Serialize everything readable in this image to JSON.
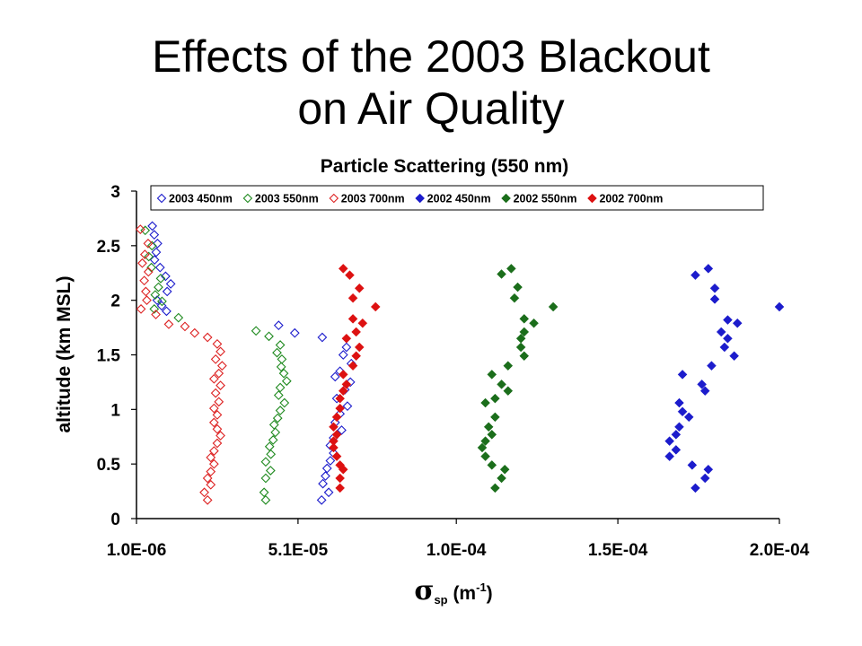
{
  "slide": {
    "title_line1": "Effects of the 2003 Blackout",
    "title_line2": "on Air Quality"
  },
  "chart_data": {
    "type": "scatter",
    "title": "Particle Scattering (550 nm)",
    "xlabel_symbol": "σ",
    "xlabel_sub": "sp",
    "xlabel_unit_open": " (m",
    "xlabel_unit_sup": "-1",
    "xlabel_unit_close": ")",
    "ylabel": "altitude (km MSL)",
    "xlim": [
      1e-06,
      0.0002
    ],
    "ylim": [
      0,
      3
    ],
    "x_ticks": [
      {
        "value": 1e-06,
        "label": "1.0E-06"
      },
      {
        "value": 5.1e-05,
        "label": "5.1E-05"
      },
      {
        "value": 0.0001,
        "label": "1.0E-04"
      },
      {
        "value": 0.00015,
        "label": "1.5E-04"
      },
      {
        "value": 0.0002,
        "label": "2.0E-04"
      }
    ],
    "y_ticks": [
      {
        "value": 0,
        "label": "0"
      },
      {
        "value": 0.5,
        "label": "0.5"
      },
      {
        "value": 1,
        "label": "1"
      },
      {
        "value": 1.5,
        "label": "1.5"
      },
      {
        "value": 2,
        "label": "2"
      },
      {
        "value": 2.5,
        "label": "2.5"
      },
      {
        "value": 3,
        "label": "3"
      }
    ],
    "grid": false,
    "legend_position": "top",
    "series": [
      {
        "name": "2003 450nm",
        "color": "#1c1ccc",
        "marker": "diamond-open",
        "points": [
          {
            "x": 5.9e-06,
            "y": 2.68
          },
          {
            "x": 6.5e-06,
            "y": 2.6
          },
          {
            "x": 7.5e-06,
            "y": 2.52
          },
          {
            "x": 7.1e-06,
            "y": 2.44
          },
          {
            "x": 6.6e-06,
            "y": 2.37
          },
          {
            "x": 8.3e-06,
            "y": 2.3
          },
          {
            "x": 1e-05,
            "y": 2.22
          },
          {
            "x": 1.16e-05,
            "y": 2.15
          },
          {
            "x": 1.05e-05,
            "y": 2.08
          },
          {
            "x": 7.4e-06,
            "y": 2.0
          },
          {
            "x": 8.8e-06,
            "y": 1.95
          },
          {
            "x": 1.03e-05,
            "y": 1.9
          },
          {
            "x": 4.5e-05,
            "y": 1.77
          },
          {
            "x": 5e-05,
            "y": 1.7
          },
          {
            "x": 5.85e-05,
            "y": 1.66
          },
          {
            "x": 6.6e-05,
            "y": 1.57
          },
          {
            "x": 6.5e-05,
            "y": 1.5
          },
          {
            "x": 6.75e-05,
            "y": 1.42
          },
          {
            "x": 6.4e-05,
            "y": 1.35
          },
          {
            "x": 6.25e-05,
            "y": 1.3
          },
          {
            "x": 6.72e-05,
            "y": 1.25
          },
          {
            "x": 6.55e-05,
            "y": 1.18
          },
          {
            "x": 6.3e-05,
            "y": 1.1
          },
          {
            "x": 6.63e-05,
            "y": 1.03
          },
          {
            "x": 6.4e-05,
            "y": 0.96
          },
          {
            "x": 6.25e-05,
            "y": 0.88
          },
          {
            "x": 6.45e-05,
            "y": 0.81
          },
          {
            "x": 6.2e-05,
            "y": 0.74
          },
          {
            "x": 6.1e-05,
            "y": 0.67
          },
          {
            "x": 6.2e-05,
            "y": 0.6
          },
          {
            "x": 6.1e-05,
            "y": 0.53
          },
          {
            "x": 6e-05,
            "y": 0.46
          },
          {
            "x": 5.95e-05,
            "y": 0.39
          },
          {
            "x": 5.87e-05,
            "y": 0.32
          },
          {
            "x": 6.05e-05,
            "y": 0.24
          },
          {
            "x": 5.83e-05,
            "y": 0.17
          }
        ]
      },
      {
        "name": "2003 550nm",
        "color": "#1f8a1f",
        "marker": "diamond-open",
        "points": [
          {
            "x": 3.7e-06,
            "y": 2.64
          },
          {
            "x": 5.8e-06,
            "y": 2.5
          },
          {
            "x": 4.8e-06,
            "y": 2.4
          },
          {
            "x": 5.6e-06,
            "y": 2.3
          },
          {
            "x": 8.5e-06,
            "y": 2.2
          },
          {
            "x": 7.8e-06,
            "y": 2.12
          },
          {
            "x": 6.8e-06,
            "y": 2.05
          },
          {
            "x": 8.9e-06,
            "y": 1.99
          },
          {
            "x": 6.5e-06,
            "y": 1.92
          },
          {
            "x": 1.4e-05,
            "y": 1.84
          },
          {
            "x": 3.8e-05,
            "y": 1.72
          },
          {
            "x": 4.2e-05,
            "y": 1.67
          },
          {
            "x": 4.55e-05,
            "y": 1.59
          },
          {
            "x": 4.45e-05,
            "y": 1.52
          },
          {
            "x": 4.6e-05,
            "y": 1.46
          },
          {
            "x": 4.58e-05,
            "y": 1.39
          },
          {
            "x": 4.66e-05,
            "y": 1.33
          },
          {
            "x": 4.75e-05,
            "y": 1.26
          },
          {
            "x": 4.55e-05,
            "y": 1.2
          },
          {
            "x": 4.5e-05,
            "y": 1.13
          },
          {
            "x": 4.68e-05,
            "y": 1.06
          },
          {
            "x": 4.55e-05,
            "y": 0.99
          },
          {
            "x": 4.47e-05,
            "y": 0.92
          },
          {
            "x": 4.36e-05,
            "y": 0.86
          },
          {
            "x": 4.4e-05,
            "y": 0.79
          },
          {
            "x": 4.33e-05,
            "y": 0.72
          },
          {
            "x": 4.22e-05,
            "y": 0.66
          },
          {
            "x": 4.26e-05,
            "y": 0.59
          },
          {
            "x": 4.1e-05,
            "y": 0.52
          },
          {
            "x": 4.25e-05,
            "y": 0.44
          },
          {
            "x": 4.1e-05,
            "y": 0.37
          },
          {
            "x": 4.05e-05,
            "y": 0.24
          },
          {
            "x": 4.1e-05,
            "y": 0.17
          }
        ]
      },
      {
        "name": "2003 700nm",
        "color": "#dd2222",
        "marker": "diamond-open",
        "points": [
          {
            "x": 2.2e-06,
            "y": 2.65
          },
          {
            "x": 4.6e-06,
            "y": 2.52
          },
          {
            "x": 3.6e-06,
            "y": 2.42
          },
          {
            "x": 2.8e-06,
            "y": 2.34
          },
          {
            "x": 4.7e-06,
            "y": 2.26
          },
          {
            "x": 3.4e-06,
            "y": 2.18
          },
          {
            "x": 3.9e-06,
            "y": 2.08
          },
          {
            "x": 4.2e-06,
            "y": 2.0
          },
          {
            "x": 2.4e-06,
            "y": 1.92
          },
          {
            "x": 7e-06,
            "y": 1.87
          },
          {
            "x": 1.1e-05,
            "y": 1.78
          },
          {
            "x": 1.6e-05,
            "y": 1.76
          },
          {
            "x": 1.9e-05,
            "y": 1.7
          },
          {
            "x": 2.3e-05,
            "y": 1.66
          },
          {
            "x": 2.6e-05,
            "y": 1.6
          },
          {
            "x": 2.7e-05,
            "y": 1.53
          },
          {
            "x": 2.55e-05,
            "y": 1.46
          },
          {
            "x": 2.75e-05,
            "y": 1.4
          },
          {
            "x": 2.65e-05,
            "y": 1.33
          },
          {
            "x": 2.5e-05,
            "y": 1.28
          },
          {
            "x": 2.7e-05,
            "y": 1.22
          },
          {
            "x": 2.55e-05,
            "y": 1.15
          },
          {
            "x": 2.65e-05,
            "y": 1.07
          },
          {
            "x": 2.5e-05,
            "y": 1.01
          },
          {
            "x": 2.6e-05,
            "y": 0.95
          },
          {
            "x": 2.5e-05,
            "y": 0.88
          },
          {
            "x": 2.6e-05,
            "y": 0.82
          },
          {
            "x": 2.7e-05,
            "y": 0.76
          },
          {
            "x": 2.6e-05,
            "y": 0.69
          },
          {
            "x": 2.5e-05,
            "y": 0.62
          },
          {
            "x": 2.4e-05,
            "y": 0.56
          },
          {
            "x": 2.5e-05,
            "y": 0.5
          },
          {
            "x": 2.4e-05,
            "y": 0.43
          },
          {
            "x": 2.3e-05,
            "y": 0.37
          },
          {
            "x": 2.4e-05,
            "y": 0.31
          },
          {
            "x": 2.2e-05,
            "y": 0.24
          },
          {
            "x": 2.3e-05,
            "y": 0.17
          }
        ]
      },
      {
        "name": "2002 450nm",
        "color": "#1c1ccc",
        "marker": "diamond-filled",
        "points": [
          {
            "x": 0.000174,
            "y": 2.23
          },
          {
            "x": 0.000178,
            "y": 2.29
          },
          {
            "x": 0.00018,
            "y": 2.11
          },
          {
            "x": 0.00018,
            "y": 2.01
          },
          {
            "x": 0.0002,
            "y": 1.94
          },
          {
            "x": 0.000184,
            "y": 1.82
          },
          {
            "x": 0.000187,
            "y": 1.79
          },
          {
            "x": 0.000182,
            "y": 1.71
          },
          {
            "x": 0.000184,
            "y": 1.65
          },
          {
            "x": 0.000183,
            "y": 1.57
          },
          {
            "x": 0.000186,
            "y": 1.49
          },
          {
            "x": 0.000179,
            "y": 1.4
          },
          {
            "x": 0.00017,
            "y": 1.32
          },
          {
            "x": 0.000176,
            "y": 1.23
          },
          {
            "x": 0.000177,
            "y": 1.17
          },
          {
            "x": 0.000169,
            "y": 1.06
          },
          {
            "x": 0.00017,
            "y": 0.98
          },
          {
            "x": 0.000172,
            "y": 0.93
          },
          {
            "x": 0.000169,
            "y": 0.84
          },
          {
            "x": 0.000168,
            "y": 0.77
          },
          {
            "x": 0.000166,
            "y": 0.71
          },
          {
            "x": 0.000168,
            "y": 0.63
          },
          {
            "x": 0.000166,
            "y": 0.57
          },
          {
            "x": 0.000173,
            "y": 0.49
          },
          {
            "x": 0.000178,
            "y": 0.45
          },
          {
            "x": 0.000177,
            "y": 0.37
          },
          {
            "x": 0.000174,
            "y": 0.28
          }
        ]
      },
      {
        "name": "2002 550nm",
        "color": "#1b6e1b",
        "marker": "diamond-filled",
        "points": [
          {
            "x": 0.000114,
            "y": 2.24
          },
          {
            "x": 0.000117,
            "y": 2.29
          },
          {
            "x": 0.000119,
            "y": 2.12
          },
          {
            "x": 0.000118,
            "y": 2.02
          },
          {
            "x": 0.00013,
            "y": 1.94
          },
          {
            "x": 0.000121,
            "y": 1.83
          },
          {
            "x": 0.000124,
            "y": 1.79
          },
          {
            "x": 0.000121,
            "y": 1.71
          },
          {
            "x": 0.00012,
            "y": 1.65
          },
          {
            "x": 0.00012,
            "y": 1.57
          },
          {
            "x": 0.000121,
            "y": 1.49
          },
          {
            "x": 0.000116,
            "y": 1.4
          },
          {
            "x": 0.000111,
            "y": 1.32
          },
          {
            "x": 0.000114,
            "y": 1.23
          },
          {
            "x": 0.000116,
            "y": 1.17
          },
          {
            "x": 0.000112,
            "y": 1.1
          },
          {
            "x": 0.000109,
            "y": 1.06
          },
          {
            "x": 0.000112,
            "y": 0.93
          },
          {
            "x": 0.00011,
            "y": 0.84
          },
          {
            "x": 0.000111,
            "y": 0.77
          },
          {
            "x": 0.000109,
            "y": 0.71
          },
          {
            "x": 0.000108,
            "y": 0.65
          },
          {
            "x": 0.000109,
            "y": 0.57
          },
          {
            "x": 0.000111,
            "y": 0.49
          },
          {
            "x": 0.000115,
            "y": 0.45
          },
          {
            "x": 0.000114,
            "y": 0.37
          },
          {
            "x": 0.000112,
            "y": 0.28
          }
        ]
      },
      {
        "name": "2002 700nm",
        "color": "#dd1111",
        "marker": "diamond-filled",
        "points": [
          {
            "x": 6.5e-05,
            "y": 2.29
          },
          {
            "x": 6.7e-05,
            "y": 2.23
          },
          {
            "x": 7e-05,
            "y": 2.11
          },
          {
            "x": 6.8e-05,
            "y": 2.02
          },
          {
            "x": 7.5e-05,
            "y": 1.94
          },
          {
            "x": 6.8e-05,
            "y": 1.83
          },
          {
            "x": 7.1e-05,
            "y": 1.79
          },
          {
            "x": 6.9e-05,
            "y": 1.71
          },
          {
            "x": 6.6e-05,
            "y": 1.65
          },
          {
            "x": 7e-05,
            "y": 1.57
          },
          {
            "x": 6.9e-05,
            "y": 1.49
          },
          {
            "x": 6.8e-05,
            "y": 1.4
          },
          {
            "x": 6.5e-05,
            "y": 1.32
          },
          {
            "x": 6.6e-05,
            "y": 1.23
          },
          {
            "x": 6.5e-05,
            "y": 1.17
          },
          {
            "x": 6.4e-05,
            "y": 1.1
          },
          {
            "x": 6.4e-05,
            "y": 1.01
          },
          {
            "x": 6.3e-05,
            "y": 0.93
          },
          {
            "x": 6.2e-05,
            "y": 0.84
          },
          {
            "x": 6.3e-05,
            "y": 0.77
          },
          {
            "x": 6.2e-05,
            "y": 0.71
          },
          {
            "x": 6.2e-05,
            "y": 0.65
          },
          {
            "x": 6.3e-05,
            "y": 0.57
          },
          {
            "x": 6.4e-05,
            "y": 0.49
          },
          {
            "x": 6.5e-05,
            "y": 0.45
          },
          {
            "x": 6.4e-05,
            "y": 0.37
          },
          {
            "x": 6.4e-05,
            "y": 0.28
          }
        ]
      }
    ]
  }
}
